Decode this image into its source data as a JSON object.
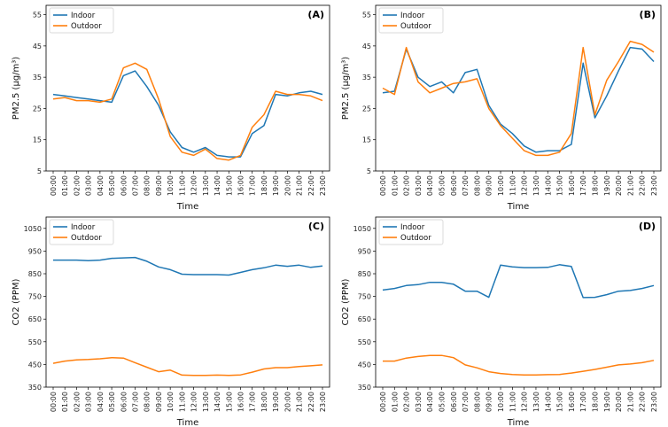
{
  "chart_data": [
    {
      "type": "line",
      "panel_label": "(A)",
      "xlabel": "Time",
      "ylabel": "PM2.5 (µg/m³)",
      "categories": [
        "00:00",
        "01:00",
        "02:00",
        "03:00",
        "04:00",
        "05:00",
        "06:00",
        "07:00",
        "08:00",
        "09:00",
        "10:00",
        "11:00",
        "12:00",
        "13:00",
        "14:00",
        "15:00",
        "16:00",
        "17:00",
        "18:00",
        "19:00",
        "20:00",
        "21:00",
        "22:00",
        "23:00"
      ],
      "yticks": [
        5,
        15,
        25,
        35,
        45,
        55
      ],
      "ylim": [
        5,
        58
      ],
      "legend": "top-left",
      "series": [
        {
          "name": "Indoor",
          "color": "#1f77b4",
          "values": [
            29.5,
            29,
            28.5,
            28,
            27.5,
            27,
            35.5,
            37,
            32,
            26,
            17.5,
            12.5,
            11,
            12.5,
            10,
            9.5,
            9.5,
            17,
            19.5,
            29.5,
            29,
            30,
            30.5,
            29.5
          ]
        },
        {
          "name": "Outdoor",
          "color": "#ff7f0e",
          "values": [
            28,
            28.5,
            27.5,
            27.5,
            27,
            28,
            38,
            39.5,
            37.5,
            28,
            16,
            11,
            10,
            12,
            9,
            8.5,
            10,
            19,
            23,
            30.5,
            29.5,
            29.5,
            29,
            27.5
          ]
        }
      ]
    },
    {
      "type": "line",
      "panel_label": "(B)",
      "xlabel": "Time",
      "ylabel": "PM2.5 (µg/m³)",
      "categories": [
        "00:00",
        "01:00",
        "02:00",
        "03:00",
        "04:00",
        "05:00",
        "06:00",
        "07:00",
        "08:00",
        "09:00",
        "10:00",
        "11:00",
        "12:00",
        "13:00",
        "14:00",
        "15:00",
        "16:00",
        "17:00",
        "18:00",
        "19:00",
        "20:00",
        "21:00",
        "22:00",
        "23:00"
      ],
      "yticks": [
        5,
        15,
        25,
        35,
        45,
        55
      ],
      "ylim": [
        5,
        58
      ],
      "legend": "top-left",
      "series": [
        {
          "name": "Indoor",
          "color": "#1f77b4",
          "values": [
            30,
            30.5,
            44,
            35,
            32,
            33.5,
            30,
            36.5,
            37.5,
            26,
            20,
            17,
            13,
            11,
            11.5,
            11.5,
            13.5,
            39.5,
            22,
            29,
            37,
            44.5,
            44,
            40
          ]
        },
        {
          "name": "Outdoor",
          "color": "#ff7f0e",
          "values": [
            31.5,
            29.5,
            44.5,
            33.5,
            30,
            31.5,
            33,
            33.5,
            34.5,
            25,
            19.5,
            15.5,
            11.5,
            10,
            10,
            11,
            17,
            44.5,
            23,
            34,
            40,
            46.5,
            45.5,
            43
          ]
        }
      ]
    },
    {
      "type": "line",
      "panel_label": "(C)",
      "xlabel": "Time",
      "ylabel": "CO2 (PPM)",
      "categories": [
        "00:00",
        "01:00",
        "02:00",
        "03:00",
        "04:00",
        "05:00",
        "06:00",
        "07:00",
        "08:00",
        "09:00",
        "10:00",
        "11:00",
        "12:00",
        "13:00",
        "14:00",
        "15:00",
        "16:00",
        "17:00",
        "18:00",
        "19:00",
        "20:00",
        "21:00",
        "22:00",
        "23:00"
      ],
      "yticks": [
        350,
        450,
        550,
        650,
        750,
        850,
        950,
        1050
      ],
      "ylim": [
        350,
        1100
      ],
      "legend": "top-left",
      "series": [
        {
          "name": "Indoor",
          "color": "#1f77b4",
          "values": [
            910,
            910,
            910,
            908,
            910,
            918,
            920,
            922,
            905,
            880,
            868,
            848,
            846,
            846,
            846,
            844,
            856,
            868,
            876,
            888,
            883,
            888,
            878,
            884
          ]
        },
        {
          "name": "Outdoor",
          "color": "#ff7f0e",
          "values": [
            455,
            465,
            470,
            472,
            475,
            480,
            478,
            458,
            438,
            418,
            425,
            403,
            402,
            402,
            403,
            402,
            404,
            416,
            430,
            436,
            436,
            441,
            444,
            448
          ]
        }
      ]
    },
    {
      "type": "line",
      "panel_label": "(D)",
      "xlabel": "Time",
      "ylabel": "CO2 (PPM)",
      "categories": [
        "00:00",
        "01:00",
        "02:00",
        "03:00",
        "04:00",
        "05:00",
        "06:00",
        "07:00",
        "08:00",
        "09:00",
        "10:00",
        "11:00",
        "12:00",
        "13:00",
        "14:00",
        "15:00",
        "16:00",
        "17:00",
        "18:00",
        "19:00",
        "20:00",
        "21:00",
        "22:00",
        "23:00"
      ],
      "yticks": [
        350,
        450,
        550,
        650,
        750,
        850,
        950,
        1050
      ],
      "ylim": [
        350,
        1100
      ],
      "legend": "top-left",
      "series": [
        {
          "name": "Indoor",
          "color": "#1f77b4",
          "values": [
            778,
            785,
            798,
            802,
            812,
            812,
            804,
            773,
            773,
            746,
            888,
            880,
            877,
            877,
            878,
            890,
            882,
            745,
            746,
            758,
            773,
            776,
            785,
            798
          ]
        },
        {
          "name": "Outdoor",
          "color": "#ff7f0e",
          "values": [
            465,
            465,
            478,
            485,
            490,
            490,
            480,
            448,
            435,
            418,
            410,
            406,
            404,
            404,
            405,
            406,
            412,
            420,
            428,
            438,
            448,
            452,
            458,
            468
          ]
        }
      ]
    }
  ]
}
